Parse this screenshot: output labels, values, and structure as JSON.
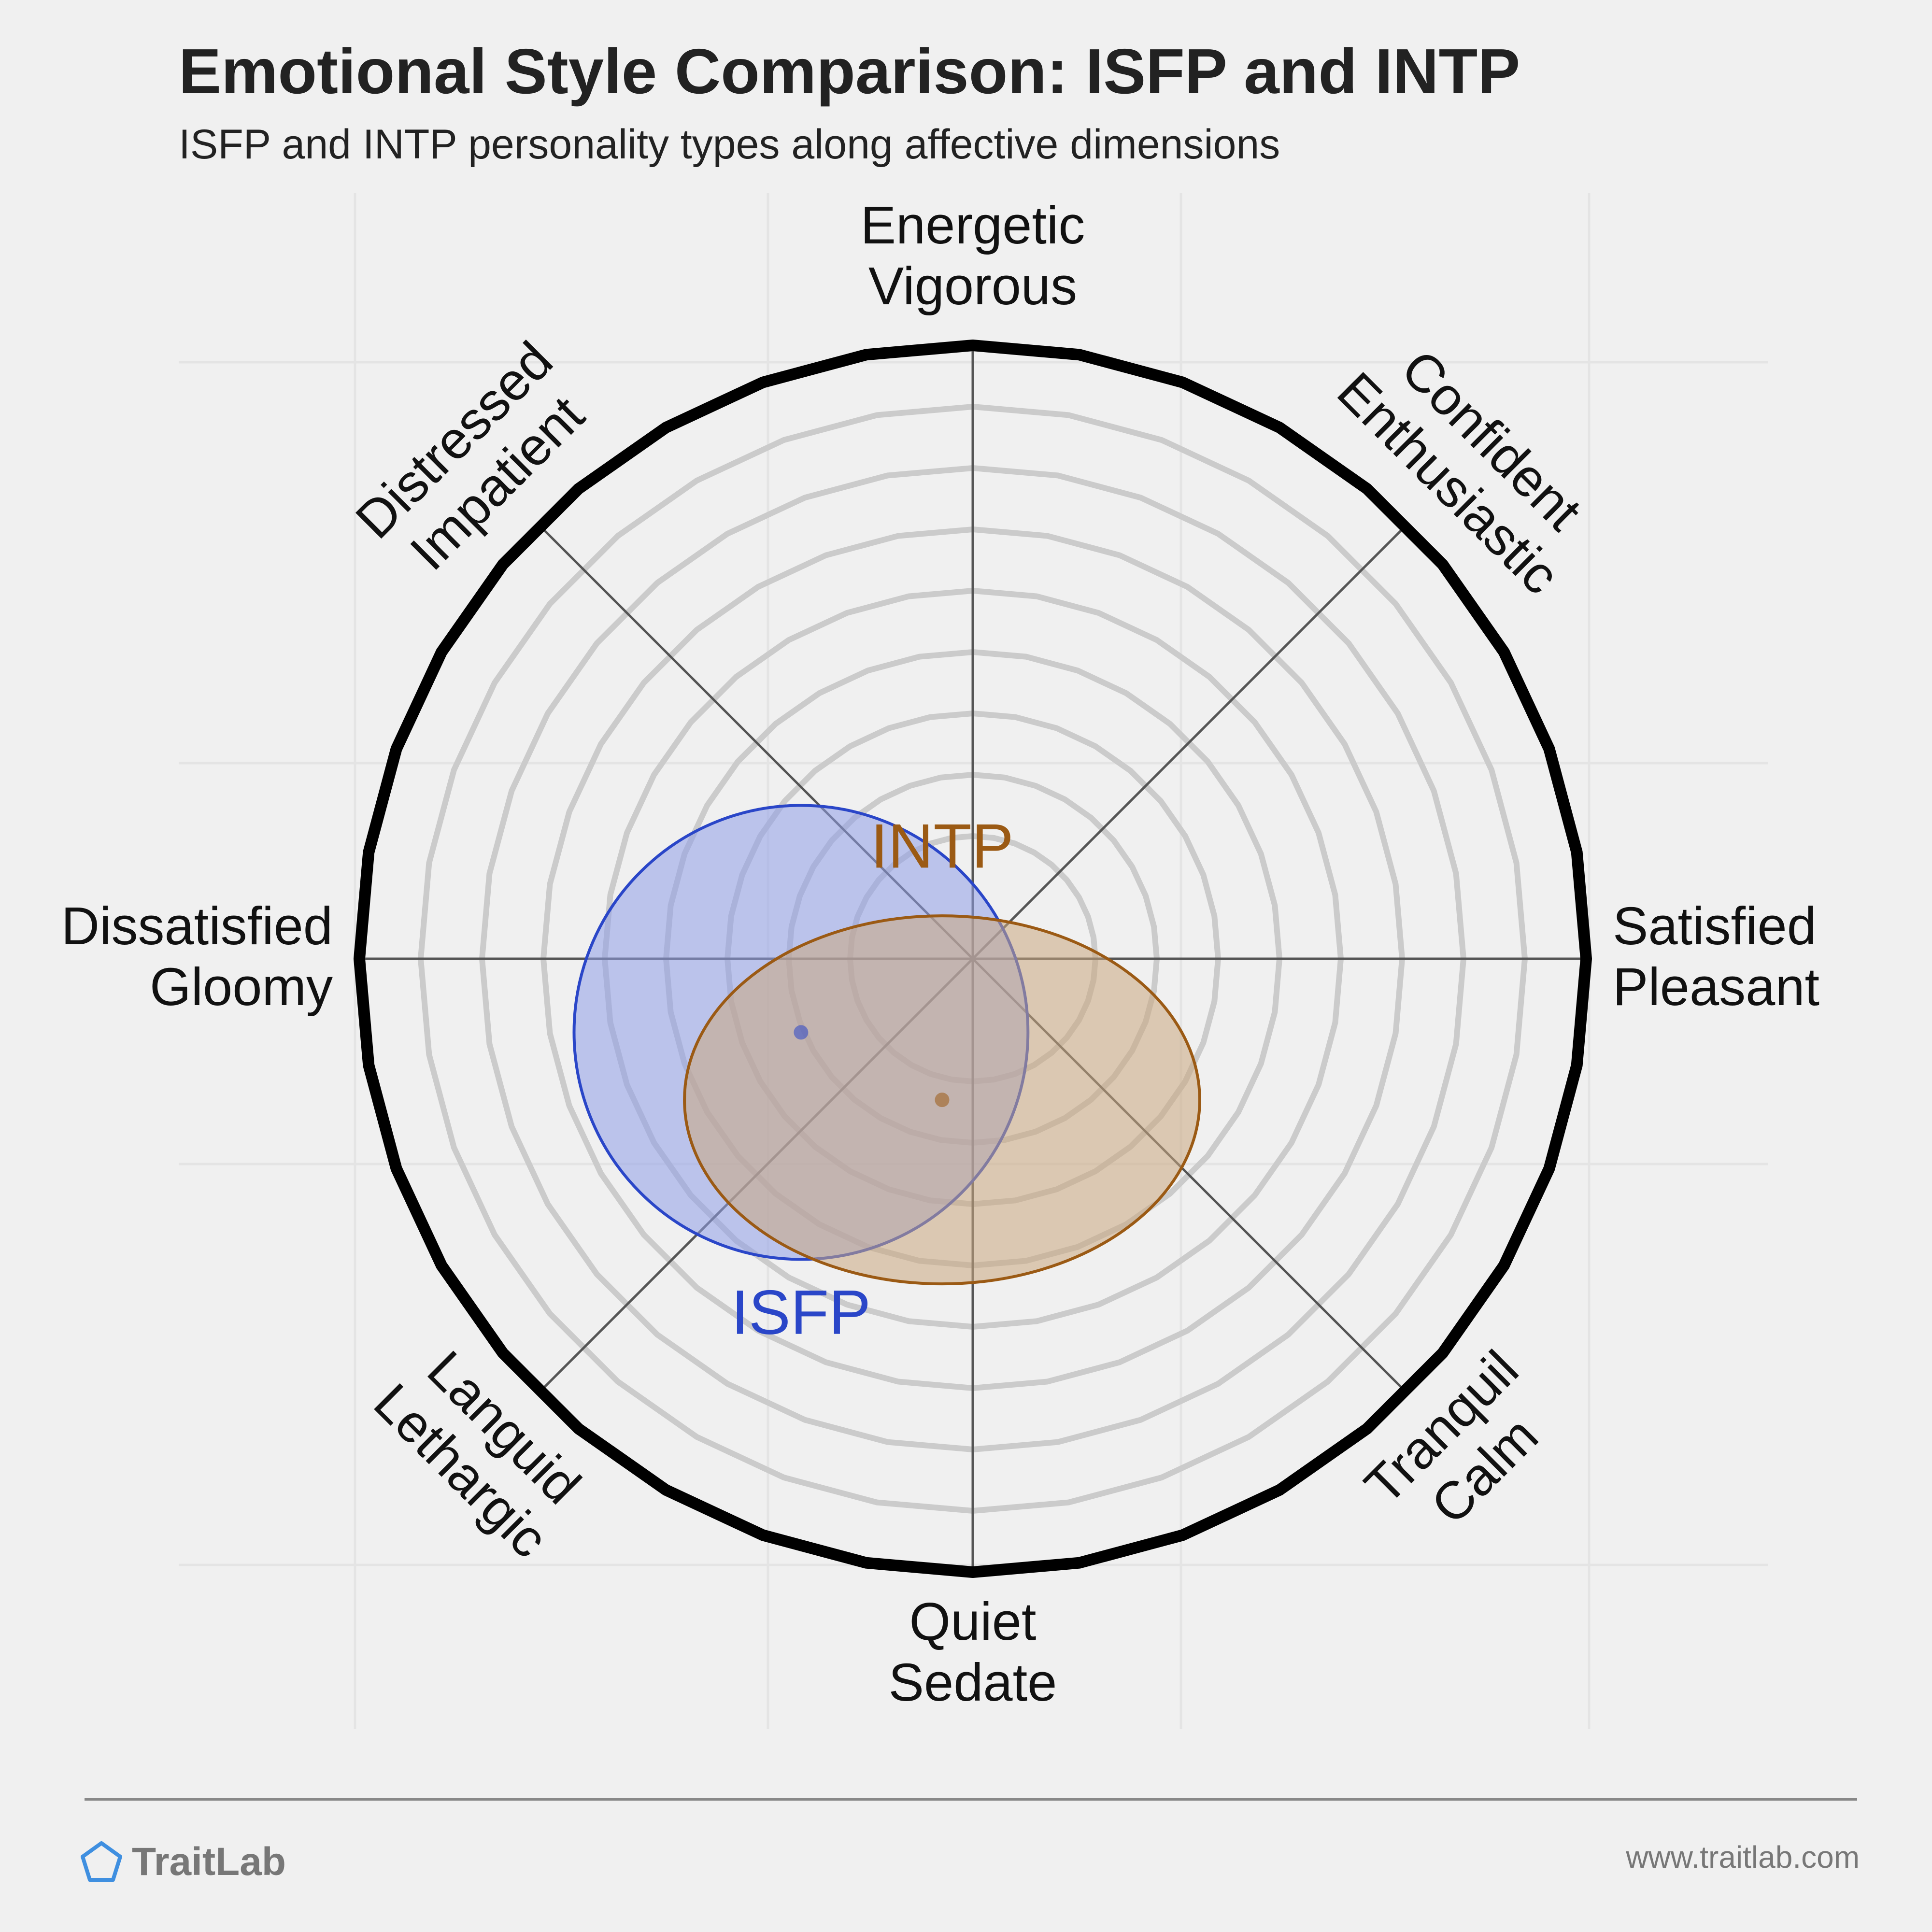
{
  "header": {
    "title": "Emotional Style Comparison: ISFP and INTP",
    "subtitle": "ISFP and INTP personality types along affective dimensions"
  },
  "chart_data": {
    "type": "scatter",
    "axes": [
      {
        "angle_deg": 90,
        "lines": [
          "Energetic",
          "Vigorous"
        ]
      },
      {
        "angle_deg": 45,
        "lines": [
          "Confident",
          "Enthusiastic"
        ]
      },
      {
        "angle_deg": 0,
        "lines": [
          "Satisfied",
          "Pleasant"
        ]
      },
      {
        "angle_deg": -45,
        "lines": [
          "Tranquil",
          "Calm"
        ]
      },
      {
        "angle_deg": -90,
        "lines": [
          "Quiet",
          "Sedate"
        ]
      },
      {
        "angle_deg": -135,
        "lines": [
          "Languid",
          "Lethargic"
        ]
      },
      {
        "angle_deg": 180,
        "lines": [
          "Dissatisfied",
          "Gloomy"
        ]
      },
      {
        "angle_deg": 135,
        "lines": [
          "Distressed",
          "Impatient"
        ]
      }
    ],
    "range": [
      -1,
      1
    ],
    "rings": [
      0.2,
      0.4,
      0.6,
      0.8,
      1.0
    ],
    "grid": true,
    "series": [
      {
        "name": "ISFP",
        "center": [
          -0.28,
          -0.12
        ],
        "radius_x": 0.37,
        "radius_y": 0.37,
        "color": "#2a46c8",
        "fill": "#8f9ee8",
        "label_pos": [
          -0.28,
          -0.58
        ]
      },
      {
        "name": "INTP",
        "center": [
          -0.05,
          -0.23
        ],
        "radius_x": 0.42,
        "radius_y": 0.3,
        "color": "#9b5a14",
        "fill": "#cba77f",
        "label_pos": [
          -0.05,
          0.18
        ]
      }
    ]
  },
  "footer": {
    "brand": "TraitLab",
    "url": "www.traitlab.com",
    "logo_icon": "pentagon-icon",
    "brand_color": "#3f8fe0"
  }
}
